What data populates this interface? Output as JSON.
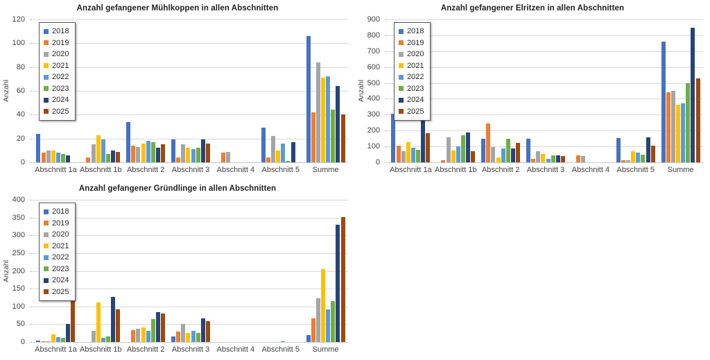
{
  "page": {
    "background": "#FFFFFF"
  },
  "chart_data": [
    {
      "type": "bar",
      "title": "Anzahl gefangener Mühlkoppen in allen Abschnitten",
      "xlabel": "",
      "ylabel": "Anzahl",
      "ylim": [
        0,
        120
      ],
      "ytick_step": 20,
      "grid": true,
      "legend_position": "top-left",
      "categories": [
        "Abschnitt 1a",
        "Abschnitt 1b",
        "Abschnitt 2",
        "Abschnitt 3",
        "Abschnitt 4",
        "Abschnitt 5",
        "Summe"
      ],
      "series": [
        {
          "name": "2018",
          "color": "#4472C4",
          "values": [
            24,
            0,
            34,
            19,
            0,
            29,
            106
          ]
        },
        {
          "name": "2019",
          "color": "#ED7D31",
          "values": [
            8,
            4,
            14,
            4,
            8,
            4,
            42
          ]
        },
        {
          "name": "2020",
          "color": "#A5A5A5",
          "values": [
            10,
            15,
            13,
            15,
            9,
            22,
            84
          ]
        },
        {
          "name": "2021",
          "color": "#FFC000",
          "values": [
            10,
            23,
            16,
            12,
            0,
            10,
            71
          ]
        },
        {
          "name": "2022",
          "color": "#5B9BD5",
          "values": [
            8,
            19,
            18,
            11,
            0,
            16,
            72
          ]
        },
        {
          "name": "2023",
          "color": "#70AD47",
          "values": [
            7,
            7,
            17,
            12,
            0,
            1,
            44
          ]
        },
        {
          "name": "2024",
          "color": "#264478",
          "values": [
            6,
            10,
            12,
            19,
            0,
            17,
            64
          ]
        },
        {
          "name": "2025",
          "color": "#9E480E",
          "values": [
            0,
            9,
            15,
            16,
            0,
            0,
            40
          ]
        }
      ]
    },
    {
      "type": "bar",
      "title": "Anzahl gefangener Elritzen in allen Abschnitten",
      "xlabel": "",
      "ylabel": "Anzahl",
      "ylim": [
        0,
        900
      ],
      "ytick_step": 100,
      "grid": true,
      "legend_position": "top-left",
      "categories": [
        "Abschnitt 1a",
        "Abschnitt 1b",
        "Abschnitt 2",
        "Abschnitt 3",
        "Abschnitt 4",
        "Abschnitt 5",
        "Summe"
      ],
      "series": [
        {
          "name": "2018",
          "color": "#4472C4",
          "values": [
            305,
            0,
            150,
            150,
            0,
            153,
            760
          ]
        },
        {
          "name": "2019",
          "color": "#ED7D31",
          "values": [
            105,
            15,
            245,
            20,
            43,
            13,
            443
          ]
        },
        {
          "name": "2020",
          "color": "#A5A5A5",
          "values": [
            70,
            157,
            95,
            70,
            40,
            15,
            452
          ]
        },
        {
          "name": "2021",
          "color": "#FFC000",
          "values": [
            127,
            75,
            32,
            52,
            0,
            72,
            363
          ]
        },
        {
          "name": "2022",
          "color": "#5B9BD5",
          "values": [
            93,
            100,
            87,
            22,
            0,
            62,
            372
          ]
        },
        {
          "name": "2023",
          "color": "#70AD47",
          "values": [
            80,
            172,
            147,
            45,
            0,
            50,
            500
          ]
        },
        {
          "name": "2024",
          "color": "#264478",
          "values": [
            370,
            187,
            88,
            45,
            0,
            157,
            848
          ]
        },
        {
          "name": "2025",
          "color": "#9E480E",
          "values": [
            185,
            72,
            123,
            40,
            0,
            103,
            530
          ]
        }
      ]
    },
    {
      "type": "bar",
      "title": "Anzahl gefangener Gründlinge in allen Abschnitten",
      "xlabel": "",
      "ylabel": "Anzahl",
      "ylim": [
        0,
        400
      ],
      "ytick_step": 50,
      "grid": true,
      "legend_position": "top-left",
      "categories": [
        "Abschnitt 1a",
        "Abschnitt 1b",
        "Abschnitt 2",
        "Abschnitt 3",
        "Abschnitt 4",
        "Abschnitt 5",
        "Summe"
      ],
      "series": [
        {
          "name": "2018",
          "color": "#4472C4",
          "values": [
            4,
            0,
            0,
            15,
            0,
            0,
            19
          ]
        },
        {
          "name": "2019",
          "color": "#ED7D31",
          "values": [
            2,
            0,
            33,
            30,
            0,
            0,
            67
          ]
        },
        {
          "name": "2020",
          "color": "#A5A5A5",
          "values": [
            2,
            31,
            37,
            50,
            0,
            0,
            122
          ]
        },
        {
          "name": "2021",
          "color": "#FFC000",
          "values": [
            22,
            111,
            41,
            26,
            0,
            0,
            204
          ]
        },
        {
          "name": "2022",
          "color": "#5B9BD5",
          "values": [
            14,
            12,
            31,
            32,
            0,
            2,
            92
          ]
        },
        {
          "name": "2023",
          "color": "#70AD47",
          "values": [
            11,
            15,
            64,
            25,
            0,
            0,
            116
          ]
        },
        {
          "name": "2024",
          "color": "#264478",
          "values": [
            50,
            126,
            84,
            66,
            0,
            0,
            330
          ]
        },
        {
          "name": "2025",
          "color": "#9E480E",
          "values": [
            120,
            92,
            80,
            59,
            0,
            0,
            352
          ]
        }
      ]
    }
  ]
}
